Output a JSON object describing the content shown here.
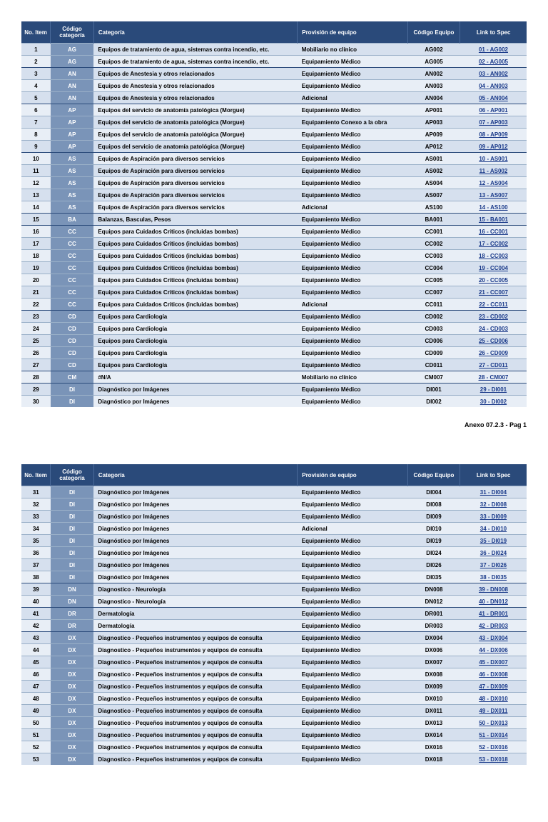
{
  "colors": {
    "header_bg": "#2a4a7a",
    "header_fg": "#ffffff",
    "row_even": "#d6e0ee",
    "row_odd": "#e8eef6",
    "cat_cell_bg": "#7a94b8",
    "link_color": "#1a3a8a",
    "row_border": "#9ab0c8",
    "group_border": "#2a4a7a"
  },
  "headers": {
    "no": "No. Item",
    "cat": "Código categoría",
    "desc": "Categoría",
    "prov": "Provisión de equipo",
    "code": "Código Equipo",
    "link": "Link to Spec"
  },
  "footer": "Anexo 07.2.3 - Pag 1",
  "tables": [
    {
      "rows": [
        {
          "no": "1",
          "cat": "AG",
          "desc": "Equipos de tratamiento de agua, sistemas contra incendio, etc.",
          "prov": "Mobiliario no clínico",
          "code": "AG002",
          "link": "01 - AG002",
          "sep": false
        },
        {
          "no": "2",
          "cat": "AG",
          "desc": "Equipos de tratamiento de agua, sistemas contra incendio, etc.",
          "prov": "Equipamiento Médico",
          "code": "AG005",
          "link": "02 - AG005",
          "sep": false
        },
        {
          "no": "3",
          "cat": "AN",
          "desc": "Equipos de Anestesia y otros relacionados",
          "prov": "Equipamiento Médico",
          "code": "AN002",
          "link": "03 - AN002",
          "sep": true
        },
        {
          "no": "4",
          "cat": "AN",
          "desc": "Equipos de Anestesia y otros relacionados",
          "prov": "Equipamiento Médico",
          "code": "AN003",
          "link": "04 - AN003",
          "sep": false
        },
        {
          "no": "5",
          "cat": "AN",
          "desc": "Equipos de Anestesia y otros relacionados",
          "prov": "Adicional",
          "code": "AN004",
          "link": "05 - AN004",
          "sep": false
        },
        {
          "no": "6",
          "cat": "AP",
          "desc": "Equipos del servicio de anatomía patológica (Morgue)",
          "prov": "Equipamiento Médico",
          "code": "AP001",
          "link": "06 - AP001",
          "sep": true
        },
        {
          "no": "7",
          "cat": "AP",
          "desc": "Equipos del servicio de anatomía patológica (Morgue)",
          "prov": "Equipamiento Conexo a la obra",
          "code": "AP003",
          "link": "07 - AP003",
          "sep": false
        },
        {
          "no": "8",
          "cat": "AP",
          "desc": "Equipos del servicio de anatomía patológica (Morgue)",
          "prov": "Equipamiento Médico",
          "code": "AP009",
          "link": "08 - AP009",
          "sep": false
        },
        {
          "no": "9",
          "cat": "AP",
          "desc": "Equipos del servicio de anatomía patológica (Morgue)",
          "prov": "Equipamiento Médico",
          "code": "AP012",
          "link": "09 - AP012",
          "sep": false
        },
        {
          "no": "10",
          "cat": "AS",
          "desc": "Equipos de Aspiración para diversos servicios",
          "prov": "Equipamiento Médico",
          "code": "AS001",
          "link": "10 - AS001",
          "sep": true
        },
        {
          "no": "11",
          "cat": "AS",
          "desc": "Equipos de Aspiración para diversos servicios",
          "prov": "Equipamiento Médico",
          "code": "AS002",
          "link": "11 - AS002",
          "sep": false
        },
        {
          "no": "12",
          "cat": "AS",
          "desc": "Equipos de Aspiración para diversos servicios",
          "prov": "Equipamiento Médico",
          "code": "AS004",
          "link": "12 - AS004",
          "sep": false
        },
        {
          "no": "13",
          "cat": "AS",
          "desc": "Equipos de Aspiración para diversos servicios",
          "prov": "Equipamiento Médico",
          "code": "AS007",
          "link": "13 - AS007",
          "sep": false
        },
        {
          "no": "14",
          "cat": "AS",
          "desc": "Equipos de Aspiración para diversos servicios",
          "prov": "Adicional",
          "code": "AS100",
          "link": "14 - AS100",
          "sep": false
        },
        {
          "no": "15",
          "cat": "BA",
          "desc": "Balanzas, Basculas, Pesos",
          "prov": "Equipamiento Médico",
          "code": "BA001",
          "link": "15 - BA001",
          "sep": true
        },
        {
          "no": "16",
          "cat": "CC",
          "desc": "Equipos para Cuidados Críticos (incluidas bombas)",
          "prov": "Equipamiento Médico",
          "code": "CC001",
          "link": "16 - CC001",
          "sep": true
        },
        {
          "no": "17",
          "cat": "CC",
          "desc": "Equipos para Cuidados Críticos (incluidas bombas)",
          "prov": "Equipamiento Médico",
          "code": "CC002",
          "link": "17 - CC002",
          "sep": false
        },
        {
          "no": "18",
          "cat": "CC",
          "desc": "Equipos para Cuidados Críticos (incluidas bombas)",
          "prov": "Equipamiento Médico",
          "code": "CC003",
          "link": "18 - CC003",
          "sep": false
        },
        {
          "no": "19",
          "cat": "CC",
          "desc": "Equipos para Cuidados Críticos (incluidas bombas)",
          "prov": "Equipamiento Médico",
          "code": "CC004",
          "link": "19 - CC004",
          "sep": false
        },
        {
          "no": "20",
          "cat": "CC",
          "desc": "Equipos para Cuidados Críticos (incluidas bombas)",
          "prov": "Equipamiento Médico",
          "code": "CC005",
          "link": "20 - CC005",
          "sep": false
        },
        {
          "no": "21",
          "cat": "CC",
          "desc": "Equipos para Cuidados Críticos (incluidas bombas)",
          "prov": "Equipamiento Médico",
          "code": "CC007",
          "link": "21 - CC007",
          "sep": false
        },
        {
          "no": "22",
          "cat": "CC",
          "desc": "Equipos para Cuidados Críticos (incluidas bombas)",
          "prov": "Adicional",
          "code": "CC011",
          "link": "22 - CC011",
          "sep": false
        },
        {
          "no": "23",
          "cat": "CD",
          "desc": "Equipos para Cardiología",
          "prov": "Equipamiento Médico",
          "code": "CD002",
          "link": "23 - CD002",
          "sep": true
        },
        {
          "no": "24",
          "cat": "CD",
          "desc": "Equipos para Cardiología",
          "prov": "Equipamiento Médico",
          "code": "CD003",
          "link": "24 - CD003",
          "sep": false
        },
        {
          "no": "25",
          "cat": "CD",
          "desc": "Equipos para Cardiología",
          "prov": "Equipamiento Médico",
          "code": "CD006",
          "link": "25 - CD006",
          "sep": false
        },
        {
          "no": "26",
          "cat": "CD",
          "desc": "Equipos para Cardiología",
          "prov": "Equipamiento Médico",
          "code": "CD009",
          "link": "26 - CD009",
          "sep": false
        },
        {
          "no": "27",
          "cat": "CD",
          "desc": "Equipos para Cardiología",
          "prov": "Equipamiento Médico",
          "code": "CD011",
          "link": "27 - CD011",
          "sep": false
        },
        {
          "no": "28",
          "cat": "CM",
          "desc": "#N/A",
          "prov": "Mobiliario no clínico",
          "code": "CM007",
          "link": "28 - CM007",
          "sep": true
        },
        {
          "no": "29",
          "cat": "DI",
          "desc": "Diagnóstico por Imágenes",
          "prov": "Equipamiento Médico",
          "code": "DI001",
          "link": "29 - DI001",
          "sep": true
        },
        {
          "no": "30",
          "cat": "DI",
          "desc": "Diagnóstico por Imágenes",
          "prov": "Equipamiento Médico",
          "code": "DI002",
          "link": "30 - DI002",
          "sep": false
        }
      ]
    },
    {
      "rows": [
        {
          "no": "31",
          "cat": "DI",
          "desc": "Diagnóstico por Imágenes",
          "prov": "Equipamiento Médico",
          "code": "DI004",
          "link": "31 - DI004",
          "sep": false
        },
        {
          "no": "32",
          "cat": "DI",
          "desc": "Diagnóstico por Imágenes",
          "prov": "Equipamiento Médico",
          "code": "DI008",
          "link": "32 - DI008",
          "sep": false
        },
        {
          "no": "33",
          "cat": "DI",
          "desc": "Diagnóstico por Imágenes",
          "prov": "Equipamiento Médico",
          "code": "DI009",
          "link": "33 - DI009",
          "sep": false
        },
        {
          "no": "34",
          "cat": "DI",
          "desc": "Diagnóstico por Imágenes",
          "prov": "Adicional",
          "code": "DI010",
          "link": "34 - DI010",
          "sep": false
        },
        {
          "no": "35",
          "cat": "DI",
          "desc": "Diagnóstico por Imágenes",
          "prov": "Equipamiento Médico",
          "code": "DI019",
          "link": "35 - DI019",
          "sep": false
        },
        {
          "no": "36",
          "cat": "DI",
          "desc": "Diagnóstico por Imágenes",
          "prov": "Equipamiento Médico",
          "code": "DI024",
          "link": "36 - DI024",
          "sep": false
        },
        {
          "no": "37",
          "cat": "DI",
          "desc": "Diagnóstico por Imágenes",
          "prov": "Equipamiento Médico",
          "code": "DI026",
          "link": "37 - DI026",
          "sep": false
        },
        {
          "no": "38",
          "cat": "DI",
          "desc": "Diagnóstico por Imágenes",
          "prov": "Equipamiento Médico",
          "code": "DI035",
          "link": "38 - DI035",
          "sep": false
        },
        {
          "no": "39",
          "cat": "DN",
          "desc": "Diagnostico - Neurología",
          "prov": "Equipamiento Médico",
          "code": "DN008",
          "link": "39 - DN008",
          "sep": true
        },
        {
          "no": "40",
          "cat": "DN",
          "desc": "Diagnostico - Neurología",
          "prov": "Equipamiento Médico",
          "code": "DN012",
          "link": "40 - DN012",
          "sep": false
        },
        {
          "no": "41",
          "cat": "DR",
          "desc": "Dermatología",
          "prov": "Equipamiento Médico",
          "code": "DR001",
          "link": "41 - DR001",
          "sep": true
        },
        {
          "no": "42",
          "cat": "DR",
          "desc": "Dermatología",
          "prov": "Equipamiento Médico",
          "code": "DR003",
          "link": "42 - DR003",
          "sep": false
        },
        {
          "no": "43",
          "cat": "DX",
          "desc": "Diagnostico - Pequeños instrumentos y equipos de consulta",
          "prov": "Equipamiento Médico",
          "code": "DX004",
          "link": "43 - DX004",
          "sep": true
        },
        {
          "no": "44",
          "cat": "DX",
          "desc": "Diagnostico - Pequeños instrumentos y equipos de consulta",
          "prov": "Equipamiento Médico",
          "code": "DX006",
          "link": "44 - DX006",
          "sep": false
        },
        {
          "no": "45",
          "cat": "DX",
          "desc": "Diagnostico - Pequeños instrumentos y equipos de consulta",
          "prov": "Equipamiento Médico",
          "code": "DX007",
          "link": "45 - DX007",
          "sep": false
        },
        {
          "no": "46",
          "cat": "DX",
          "desc": "Diagnostico - Pequeños instrumentos y equipos de consulta",
          "prov": "Equipamiento Médico",
          "code": "DX008",
          "link": "46 - DX008",
          "sep": false
        },
        {
          "no": "47",
          "cat": "DX",
          "desc": "Diagnostico - Pequeños instrumentos y equipos de consulta",
          "prov": "Equipamiento Médico",
          "code": "DX009",
          "link": "47 - DX009",
          "sep": false
        },
        {
          "no": "48",
          "cat": "DX",
          "desc": "Diagnostico - Pequeños instrumentos y equipos de consulta",
          "prov": "Equipamiento Médico",
          "code": "DX010",
          "link": "48 - DX010",
          "sep": false
        },
        {
          "no": "49",
          "cat": "DX",
          "desc": "Diagnostico - Pequeños instrumentos y equipos de consulta",
          "prov": "Equipamiento Médico",
          "code": "DX011",
          "link": "49 - DX011",
          "sep": false
        },
        {
          "no": "50",
          "cat": "DX",
          "desc": "Diagnostico - Pequeños instrumentos y equipos de consulta",
          "prov": "Equipamiento Médico",
          "code": "DX013",
          "link": "50 - DX013",
          "sep": false
        },
        {
          "no": "51",
          "cat": "DX",
          "desc": "Diagnostico - Pequeños instrumentos y equipos de consulta",
          "prov": "Equipamiento Médico",
          "code": "DX014",
          "link": "51 - DX014",
          "sep": false
        },
        {
          "no": "52",
          "cat": "DX",
          "desc": "Diagnostico - Pequeños instrumentos y equipos de consulta",
          "prov": "Equipamiento Médico",
          "code": "DX016",
          "link": "52 - DX016",
          "sep": false
        },
        {
          "no": "53",
          "cat": "DX",
          "desc": "Diagnostico - Pequeños instrumentos y equipos de consulta",
          "prov": "Equipamiento Médico",
          "code": "DX018",
          "link": "53 - DX018",
          "sep": false
        }
      ]
    }
  ]
}
